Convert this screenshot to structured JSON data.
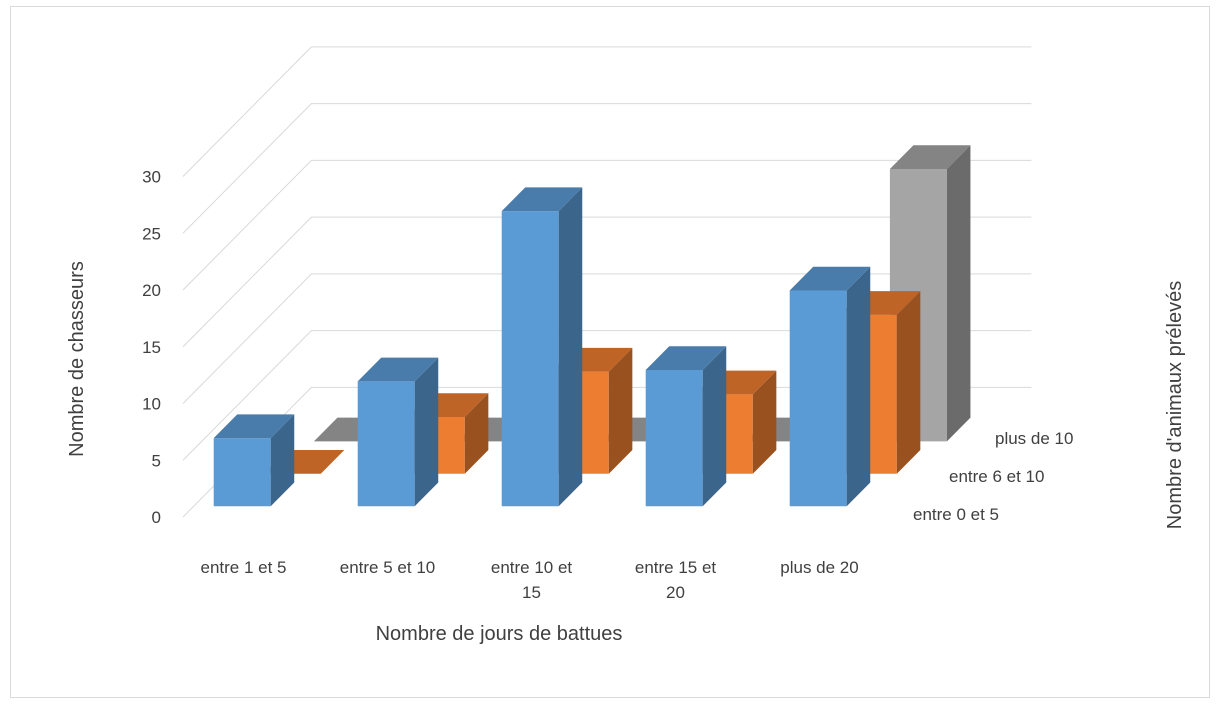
{
  "chart_data": {
    "type": "bar",
    "subtype": "3d-column",
    "categories": [
      "entre 1 et 5",
      "entre 5 et 10",
      "entre 10 et 15",
      "entre 15 et 20",
      "plus de 20"
    ],
    "series": [
      {
        "name": "entre 0 et 5",
        "color": "#5b9bd5",
        "values": [
          6,
          11,
          26,
          12,
          19
        ]
      },
      {
        "name": "entre 6 et 10",
        "color": "#ed7d31",
        "values": [
          0,
          5,
          9,
          7,
          14
        ]
      },
      {
        "name": "plus de 10",
        "color": "#a5a5a5",
        "values": [
          0,
          0,
          0,
          0,
          24
        ]
      }
    ],
    "xlabel": "Nombre de jours de battues",
    "ylabel": "Nombre de chasseurs",
    "zlabel": "Nombre d'animaux prélevés",
    "ylim": [
      0,
      30
    ],
    "yticks": [
      0,
      5,
      10,
      15,
      20,
      25,
      30
    ],
    "grid": true
  }
}
